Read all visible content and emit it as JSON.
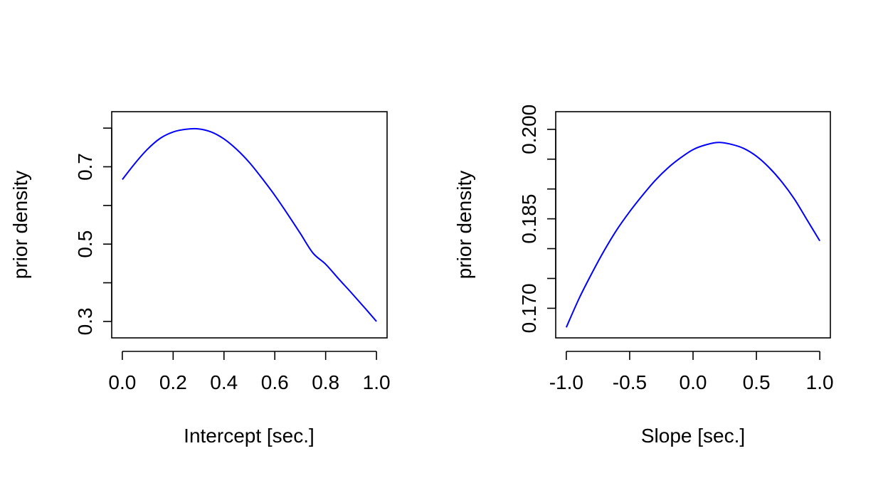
{
  "chart_data": [
    {
      "type": "line",
      "title": "",
      "xlabel": "Intercept [sec.]",
      "ylabel": "prior density",
      "xlim": [
        0.0,
        1.0
      ],
      "ylim": [
        0.28,
        0.82
      ],
      "xticks": [
        0.0,
        0.2,
        0.4,
        0.6,
        0.8,
        1.0
      ],
      "xtick_labels": [
        "0.0",
        "0.2",
        "0.4",
        "0.6",
        "0.8",
        "1.0"
      ],
      "yticks": [
        0.3,
        0.4,
        0.5,
        0.6,
        0.7,
        0.8
      ],
      "ytick_labels": [
        "0.3",
        "",
        "0.5",
        "",
        "0.7",
        ""
      ],
      "grid": false,
      "series": [
        {
          "name": "prior density",
          "color": "#0000ff",
          "x": [
            0.0,
            0.05,
            0.1,
            0.15,
            0.2,
            0.25,
            0.3,
            0.35,
            0.4,
            0.45,
            0.5,
            0.55,
            0.6,
            0.65,
            0.7,
            0.75,
            0.8,
            0.85,
            0.9,
            0.95,
            1.0
          ],
          "y": [
            0.667,
            0.709,
            0.746,
            0.774,
            0.79,
            0.797,
            0.798,
            0.79,
            0.772,
            0.745,
            0.711,
            0.67,
            0.626,
            0.578,
            0.528,
            0.477,
            0.448,
            0.411,
            0.375,
            0.338,
            0.3
          ]
        }
      ]
    },
    {
      "type": "line",
      "title": "",
      "xlabel": "Slope [sec.]",
      "ylabel": "prior density",
      "xlim": [
        -1.0,
        1.0
      ],
      "ylim": [
        0.1665,
        0.2015
      ],
      "xticks": [
        -1.0,
        -0.5,
        0.0,
        0.5,
        1.0
      ],
      "xtick_labels": [
        "-1.0",
        "-0.5",
        "0.0",
        "0.5",
        "1.0"
      ],
      "yticks": [
        0.17,
        0.175,
        0.18,
        0.185,
        0.19,
        0.195,
        0.2
      ],
      "ytick_labels": [
        "0.170",
        "",
        "",
        "0.185",
        "",
        "",
        "0.200"
      ],
      "grid": false,
      "series": [
        {
          "name": "prior density",
          "color": "#0000ff",
          "x": [
            -1.0,
            -0.9,
            -0.8,
            -0.7,
            -0.6,
            -0.5,
            -0.4,
            -0.3,
            -0.2,
            -0.1,
            0.0,
            0.1,
            0.2,
            0.3,
            0.4,
            0.5,
            0.6,
            0.7,
            0.8,
            0.9,
            1.0
          ],
          "y": [
            0.1668,
            0.1716,
            0.1758,
            0.1797,
            0.1832,
            0.1862,
            0.1889,
            0.1914,
            0.1935,
            0.1952,
            0.1966,
            0.1974,
            0.1978,
            0.1975,
            0.1968,
            0.1955,
            0.1936,
            0.1912,
            0.1883,
            0.1848,
            0.1813
          ]
        }
      ]
    }
  ]
}
